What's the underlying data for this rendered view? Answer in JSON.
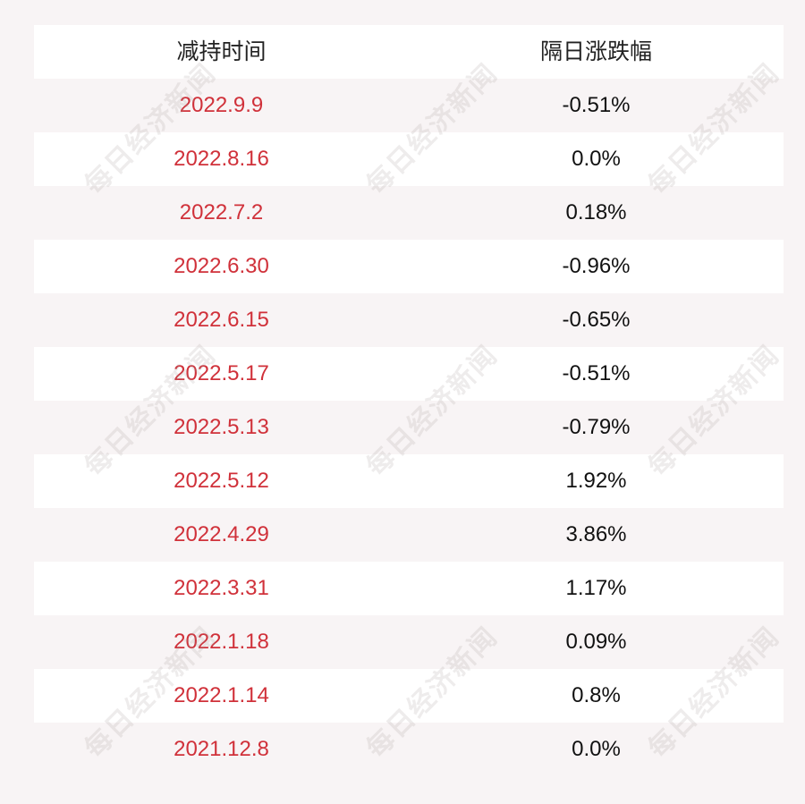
{
  "header": {
    "col1": "减持时间",
    "col2": "隔日涨跌幅"
  },
  "rows": [
    {
      "date": "2022.9.9",
      "change": "-0.51%"
    },
    {
      "date": "2022.8.16",
      "change": "0.0%"
    },
    {
      "date": "2022.7.2",
      "change": "0.18%"
    },
    {
      "date": "2022.6.30",
      "change": "-0.96%"
    },
    {
      "date": "2022.6.15",
      "change": "-0.65%"
    },
    {
      "date": "2022.5.17",
      "change": "-0.51%"
    },
    {
      "date": "2022.5.13",
      "change": "-0.79%"
    },
    {
      "date": "2022.5.12",
      "change": "1.92%"
    },
    {
      "date": "2022.4.29",
      "change": "3.86%"
    },
    {
      "date": "2022.3.31",
      "change": "1.17%"
    },
    {
      "date": "2022.1.18",
      "change": "0.09%"
    },
    {
      "date": "2022.1.14",
      "change": "0.8%"
    },
    {
      "date": "2021.12.8",
      "change": "0.0%"
    }
  ],
  "watermark": "每日经济新闻",
  "colors": {
    "date_text": "#d0313a",
    "change_text": "#111111",
    "background": "#f8f4f5",
    "stripe": "#ffffff"
  }
}
